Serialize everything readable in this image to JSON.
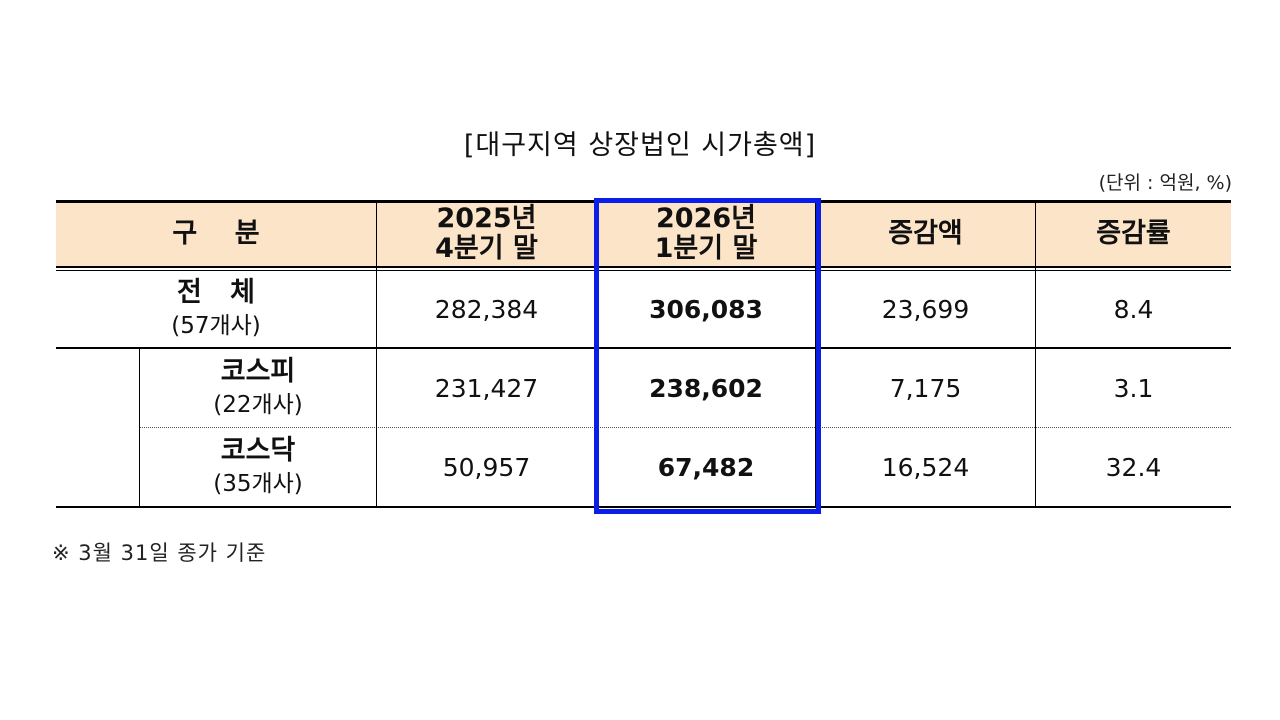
{
  "title": "[대구지역 상장법인 시가총액]",
  "unit": "(단위 : 억원, %)",
  "header": {
    "category": "구    분",
    "col1": [
      "2025년",
      "4분기 말"
    ],
    "col2": [
      "2026년",
      "1분기 말"
    ],
    "col3": "증감액",
    "col4": "증감률"
  },
  "rows": [
    {
      "label": "전   체",
      "sub": "(57개사)",
      "v1": "282,384",
      "v2": "306,083",
      "v3": "23,699",
      "v4": "8.4"
    },
    {
      "label": "코스피",
      "sub": "(22개사)",
      "v1": "231,427",
      "v2": "238,602",
      "v3": "7,175",
      "v4": "3.1"
    },
    {
      "label": "코스닥",
      "sub": "(35개사)",
      "v1": "50,957",
      "v2": "67,482",
      "v3": "16,524",
      "v4": "32.4"
    }
  ],
  "note": "※ 3월 31일 종가 기준",
  "colors": {
    "header_bg": "#fce4c9",
    "highlight_border": "#0a1ee8"
  }
}
